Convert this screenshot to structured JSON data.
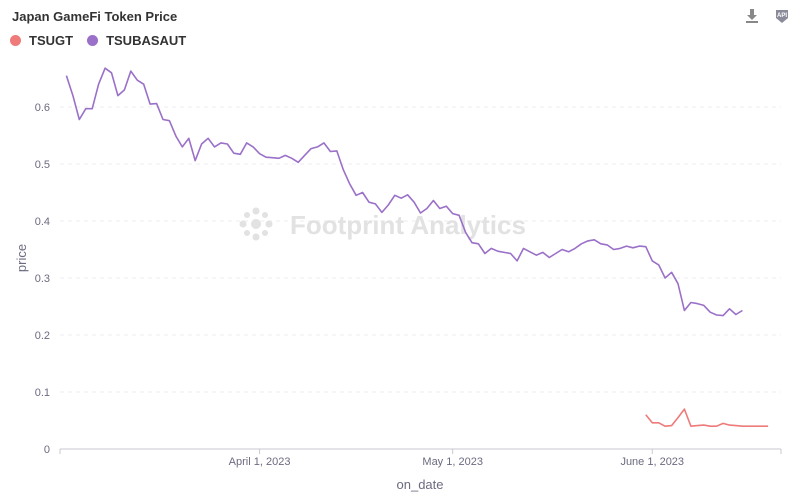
{
  "title": "Japan GameFi Token Price",
  "watermark": "Footprint Analytics",
  "toolbar": {
    "download_icon": "download-icon",
    "api_icon": "api-icon"
  },
  "chart_data": {
    "type": "line",
    "title": "Japan GameFi Token Price",
    "xlabel": "on_date",
    "ylabel": "price",
    "ylim": [
      0,
      0.7
    ],
    "y_ticks": [
      "0",
      "0.1",
      "0.2",
      "0.3",
      "0.4",
      "0.5",
      "0.6"
    ],
    "x_range": [
      "2023-03-01",
      "2023-06-21"
    ],
    "x_ticks": [
      {
        "date": "2023-04-01",
        "label": "April 1, 2023"
      },
      {
        "date": "2023-05-01",
        "label": "May 1, 2023"
      },
      {
        "date": "2023-06-01",
        "label": "June 1, 2023"
      }
    ],
    "legend_position": "top-left",
    "grid": "horizontal",
    "series": [
      {
        "name": "TSUGT",
        "color": "#ee7a7a",
        "points": [
          [
            "2023-05-31",
            0.06
          ],
          [
            "2023-06-01",
            0.046
          ],
          [
            "2023-06-02",
            0.046
          ],
          [
            "2023-06-03",
            0.04
          ],
          [
            "2023-06-04",
            0.041
          ],
          [
            "2023-06-05",
            0.055
          ],
          [
            "2023-06-06",
            0.07
          ],
          [
            "2023-06-07",
            0.04
          ],
          [
            "2023-06-08",
            0.041
          ],
          [
            "2023-06-09",
            0.042
          ],
          [
            "2023-06-10",
            0.04
          ],
          [
            "2023-06-11",
            0.04
          ],
          [
            "2023-06-12",
            0.045
          ],
          [
            "2023-06-13",
            0.042
          ],
          [
            "2023-06-14",
            0.041
          ],
          [
            "2023-06-15",
            0.04
          ],
          [
            "2023-06-16",
            0.04
          ],
          [
            "2023-06-17",
            0.04
          ],
          [
            "2023-06-18",
            0.04
          ],
          [
            "2023-06-19",
            0.04
          ]
        ]
      },
      {
        "name": "TSUBASAUT",
        "color": "#9a70c8",
        "points": [
          [
            "2023-03-02",
            0.655
          ],
          [
            "2023-03-03",
            0.62
          ],
          [
            "2023-03-04",
            0.578
          ],
          [
            "2023-03-05",
            0.597
          ],
          [
            "2023-03-06",
            0.597
          ],
          [
            "2023-03-07",
            0.64
          ],
          [
            "2023-03-08",
            0.668
          ],
          [
            "2023-03-09",
            0.66
          ],
          [
            "2023-03-10",
            0.62
          ],
          [
            "2023-03-11",
            0.63
          ],
          [
            "2023-03-12",
            0.663
          ],
          [
            "2023-03-13",
            0.647
          ],
          [
            "2023-03-14",
            0.64
          ],
          [
            "2023-03-15",
            0.605
          ],
          [
            "2023-03-16",
            0.606
          ],
          [
            "2023-03-17",
            0.578
          ],
          [
            "2023-03-18",
            0.576
          ],
          [
            "2023-03-19",
            0.549
          ],
          [
            "2023-03-20",
            0.53
          ],
          [
            "2023-03-21",
            0.545
          ],
          [
            "2023-03-22",
            0.506
          ],
          [
            "2023-03-23",
            0.535
          ],
          [
            "2023-03-24",
            0.545
          ],
          [
            "2023-03-25",
            0.53
          ],
          [
            "2023-03-26",
            0.537
          ],
          [
            "2023-03-27",
            0.535
          ],
          [
            "2023-03-28",
            0.519
          ],
          [
            "2023-03-29",
            0.517
          ],
          [
            "2023-03-30",
            0.537
          ],
          [
            "2023-03-31",
            0.53
          ],
          [
            "2023-04-01",
            0.518
          ],
          [
            "2023-04-02",
            0.512
          ],
          [
            "2023-04-03",
            0.511
          ],
          [
            "2023-04-04",
            0.51
          ],
          [
            "2023-04-05",
            0.515
          ],
          [
            "2023-04-06",
            0.51
          ],
          [
            "2023-04-07",
            0.503
          ],
          [
            "2023-04-08",
            0.515
          ],
          [
            "2023-04-09",
            0.527
          ],
          [
            "2023-04-10",
            0.53
          ],
          [
            "2023-04-11",
            0.537
          ],
          [
            "2023-04-12",
            0.522
          ],
          [
            "2023-04-13",
            0.523
          ],
          [
            "2023-04-14",
            0.49
          ],
          [
            "2023-04-15",
            0.465
          ],
          [
            "2023-04-16",
            0.445
          ],
          [
            "2023-04-17",
            0.45
          ],
          [
            "2023-04-18",
            0.433
          ],
          [
            "2023-04-19",
            0.43
          ],
          [
            "2023-04-20",
            0.415
          ],
          [
            "2023-04-21",
            0.428
          ],
          [
            "2023-04-22",
            0.445
          ],
          [
            "2023-04-23",
            0.44
          ],
          [
            "2023-04-24",
            0.446
          ],
          [
            "2023-04-25",
            0.433
          ],
          [
            "2023-04-26",
            0.414
          ],
          [
            "2023-04-27",
            0.422
          ],
          [
            "2023-04-28",
            0.436
          ],
          [
            "2023-04-29",
            0.422
          ],
          [
            "2023-04-30",
            0.426
          ],
          [
            "2023-05-01",
            0.413
          ],
          [
            "2023-05-02",
            0.41
          ],
          [
            "2023-05-03",
            0.38
          ],
          [
            "2023-05-04",
            0.362
          ],
          [
            "2023-05-05",
            0.36
          ],
          [
            "2023-05-06",
            0.343
          ],
          [
            "2023-05-07",
            0.352
          ],
          [
            "2023-05-08",
            0.347
          ],
          [
            "2023-05-09",
            0.345
          ],
          [
            "2023-05-10",
            0.343
          ],
          [
            "2023-05-11",
            0.33
          ],
          [
            "2023-05-12",
            0.352
          ],
          [
            "2023-05-13",
            0.346
          ],
          [
            "2023-05-14",
            0.34
          ],
          [
            "2023-05-15",
            0.345
          ],
          [
            "2023-05-16",
            0.336
          ],
          [
            "2023-05-17",
            0.343
          ],
          [
            "2023-05-18",
            0.35
          ],
          [
            "2023-05-19",
            0.346
          ],
          [
            "2023-05-20",
            0.352
          ],
          [
            "2023-05-21",
            0.36
          ],
          [
            "2023-05-22",
            0.365
          ],
          [
            "2023-05-23",
            0.367
          ],
          [
            "2023-05-24",
            0.36
          ],
          [
            "2023-05-25",
            0.358
          ],
          [
            "2023-05-26",
            0.35
          ],
          [
            "2023-05-27",
            0.352
          ],
          [
            "2023-05-28",
            0.356
          ],
          [
            "2023-05-29",
            0.353
          ],
          [
            "2023-05-30",
            0.356
          ],
          [
            "2023-05-31",
            0.355
          ],
          [
            "2023-06-01",
            0.33
          ],
          [
            "2023-06-02",
            0.323
          ],
          [
            "2023-06-03",
            0.3
          ],
          [
            "2023-06-04",
            0.31
          ],
          [
            "2023-06-05",
            0.29
          ],
          [
            "2023-06-06",
            0.243
          ],
          [
            "2023-06-07",
            0.257
          ],
          [
            "2023-06-08",
            0.255
          ],
          [
            "2023-06-09",
            0.252
          ],
          [
            "2023-06-10",
            0.24
          ],
          [
            "2023-06-11",
            0.235
          ],
          [
            "2023-06-12",
            0.234
          ],
          [
            "2023-06-13",
            0.246
          ],
          [
            "2023-06-14",
            0.236
          ],
          [
            "2023-06-15",
            0.243
          ]
        ]
      }
    ]
  }
}
